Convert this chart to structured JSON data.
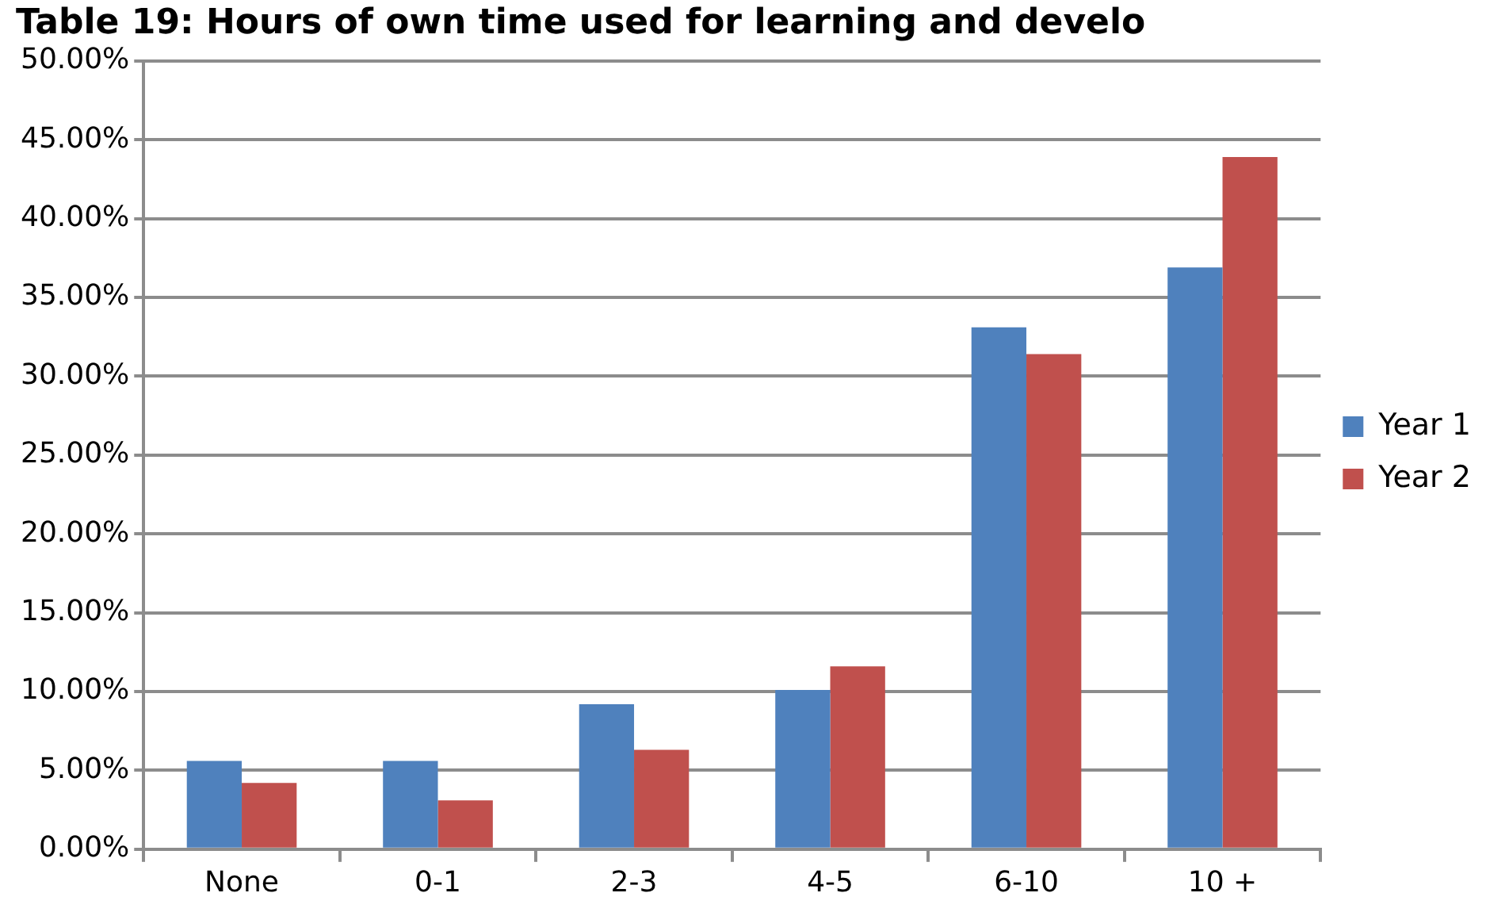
{
  "chart_data": {
    "type": "bar",
    "title": "Table 19: Hours of own time used for learning and develo",
    "categories": [
      "None",
      "0-1",
      "2-3",
      "4-5",
      "6-10",
      "10 +"
    ],
    "series": [
      {
        "name": "Year 1",
        "color": "#4f81bd",
        "values": [
          5.6,
          5.6,
          9.2,
          10.1,
          33.1,
          36.9
        ]
      },
      {
        "name": "Year 2",
        "color": "#c0504d",
        "values": [
          4.2,
          3.1,
          6.3,
          11.6,
          31.4,
          43.9
        ]
      }
    ],
    "ylim": [
      0,
      50
    ],
    "yticks": [
      {
        "value": 0,
        "label": "0.00%"
      },
      {
        "value": 5,
        "label": "5.00%"
      },
      {
        "value": 10,
        "label": "10.00%"
      },
      {
        "value": 15,
        "label": "15.00%"
      },
      {
        "value": 20,
        "label": "20.00%"
      },
      {
        "value": 25,
        "label": "25.00%"
      },
      {
        "value": 30,
        "label": "30.00%"
      },
      {
        "value": 35,
        "label": "35.00%"
      },
      {
        "value": 40,
        "label": "40.00%"
      },
      {
        "value": 45,
        "label": "45.00%"
      },
      {
        "value": 50,
        "label": "50.00%"
      }
    ],
    "grid": "y",
    "legend": "right"
  }
}
